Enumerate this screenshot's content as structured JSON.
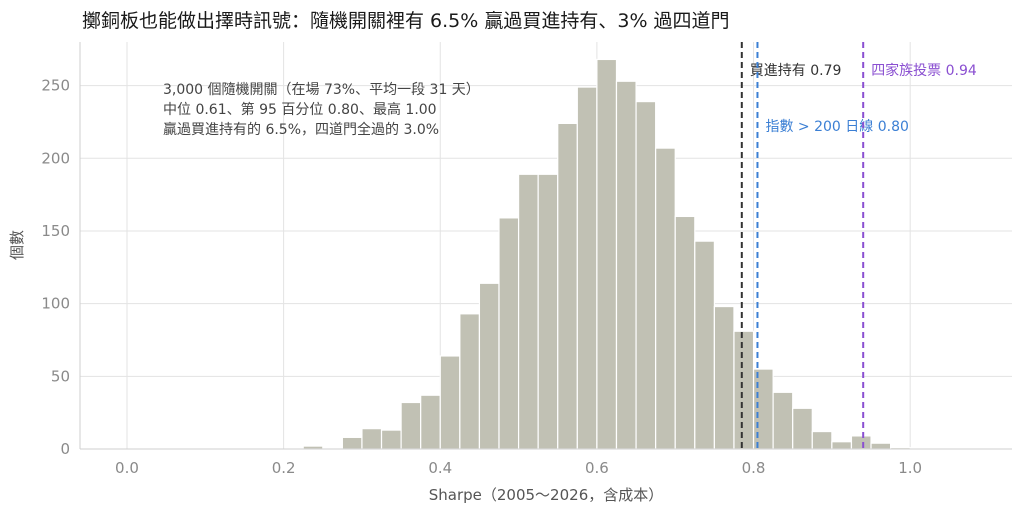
{
  "chart_data": {
    "type": "bar",
    "title": "擲銅板也能做出擇時訊號：隨機開關裡有 6.5% 贏過買進持有、3% 過四道門",
    "xlabel": "Sharpe（2005～2026，含成本）",
    "ylabel": "個數",
    "xlim": [
      -0.06,
      1.13
    ],
    "ylim": [
      0,
      280
    ],
    "x_ticks": [
      0.0,
      0.2,
      0.4,
      0.6,
      0.8,
      1.0
    ],
    "x_tick_labels": [
      "0.0",
      "0.2",
      "0.4",
      "0.6",
      "0.8",
      "1.0"
    ],
    "y_ticks": [
      0,
      50,
      100,
      150,
      200,
      250
    ],
    "y_tick_labels": [
      "0",
      "50",
      "100",
      "150",
      "200",
      "250"
    ],
    "grid": true,
    "bar_color": "#c1c1b4",
    "bins": [
      {
        "x0": 0.225,
        "x1": 0.25,
        "count": 2
      },
      {
        "x0": 0.275,
        "x1": 0.3,
        "count": 8
      },
      {
        "x0": 0.3,
        "x1": 0.325,
        "count": 14
      },
      {
        "x0": 0.325,
        "x1": 0.35,
        "count": 13
      },
      {
        "x0": 0.35,
        "x1": 0.375,
        "count": 32
      },
      {
        "x0": 0.375,
        "x1": 0.4,
        "count": 37
      },
      {
        "x0": 0.4,
        "x1": 0.425,
        "count": 64
      },
      {
        "x0": 0.425,
        "x1": 0.45,
        "count": 93
      },
      {
        "x0": 0.45,
        "x1": 0.475,
        "count": 114
      },
      {
        "x0": 0.475,
        "x1": 0.5,
        "count": 159
      },
      {
        "x0": 0.5,
        "x1": 0.525,
        "count": 189
      },
      {
        "x0": 0.525,
        "x1": 0.55,
        "count": 189
      },
      {
        "x0": 0.55,
        "x1": 0.575,
        "count": 224
      },
      {
        "x0": 0.575,
        "x1": 0.6,
        "count": 249
      },
      {
        "x0": 0.6,
        "x1": 0.625,
        "count": 268
      },
      {
        "x0": 0.625,
        "x1": 0.65,
        "count": 253
      },
      {
        "x0": 0.65,
        "x1": 0.675,
        "count": 239
      },
      {
        "x0": 0.675,
        "x1": 0.7,
        "count": 207
      },
      {
        "x0": 0.7,
        "x1": 0.725,
        "count": 160
      },
      {
        "x0": 0.725,
        "x1": 0.75,
        "count": 143
      },
      {
        "x0": 0.75,
        "x1": 0.775,
        "count": 98
      },
      {
        "x0": 0.775,
        "x1": 0.8,
        "count": 81
      },
      {
        "x0": 0.8,
        "x1": 0.825,
        "count": 55
      },
      {
        "x0": 0.825,
        "x1": 0.85,
        "count": 39
      },
      {
        "x0": 0.85,
        "x1": 0.875,
        "count": 28
      },
      {
        "x0": 0.875,
        "x1": 0.9,
        "count": 12
      },
      {
        "x0": 0.9,
        "x1": 0.925,
        "count": 5
      },
      {
        "x0": 0.925,
        "x1": 0.95,
        "count": 9
      },
      {
        "x0": 0.95,
        "x1": 0.975,
        "count": 4
      },
      {
        "x0": 0.975,
        "x1": 1.0,
        "count": 1
      }
    ],
    "reference_lines": [
      {
        "x": 0.785,
        "label": "買進持有 0.79",
        "color": "#333333"
      },
      {
        "x": 0.805,
        "label": "指數 > 200 日線 0.80",
        "color": "#3b7fd4"
      },
      {
        "x": 0.94,
        "label": "四家族投票 0.94",
        "color": "#8a4fd1"
      }
    ],
    "annotation": [
      "3,000 個隨機開關（在場 73%、平均一段 31 天）",
      "中位 0.61、第 95 百分位 0.80、最高 1.00",
      "贏過買進持有的 6.5%，四道門全過的 3.0%"
    ]
  }
}
